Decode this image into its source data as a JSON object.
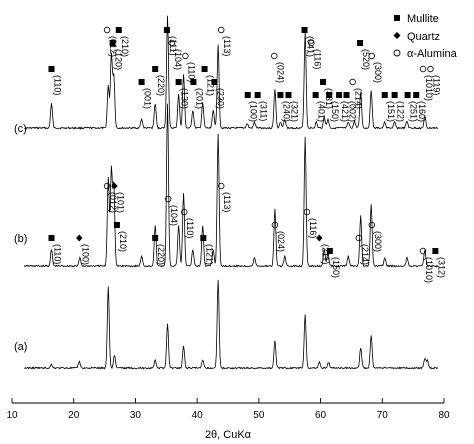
{
  "chart_data": {
    "type": "line",
    "xlabel": "2θ, CuKα",
    "ylabel": "",
    "xlim": [
      10,
      80
    ],
    "x_ticks": [
      "10",
      "20",
      "30",
      "40",
      "50",
      "60",
      "70",
      "80"
    ],
    "grid": false,
    "legend_position": "top-right",
    "legend": [
      {
        "name": "Mullite",
        "marker": "filled-square"
      },
      {
        "name": "Quartz",
        "marker": "filled-diamond"
      },
      {
        "name": "α-Alumina",
        "marker": "open-circle"
      }
    ],
    "panels": [
      {
        "name": "(c)",
        "peaks": [
          {
            "x": 16.4,
            "h": 0.22
          },
          {
            "x": 25.6,
            "h": 0.38
          },
          {
            "x": 26.1,
            "h": 0.66
          },
          {
            "x": 26.5,
            "h": 0.46
          },
          {
            "x": 31.0,
            "h": 0.08
          },
          {
            "x": 33.2,
            "h": 0.22
          },
          {
            "x": 35.2,
            "h": 1.0
          },
          {
            "x": 37.0,
            "h": 0.3
          },
          {
            "x": 37.8,
            "h": 0.48
          },
          {
            "x": 39.3,
            "h": 0.16
          },
          {
            "x": 40.9,
            "h": 0.22
          },
          {
            "x": 42.6,
            "h": 0.16
          },
          {
            "x": 43.4,
            "h": 0.74
          },
          {
            "x": 48.1,
            "h": 0.04
          },
          {
            "x": 49.3,
            "h": 0.05
          },
          {
            "x": 52.6,
            "h": 0.35
          },
          {
            "x": 53.5,
            "h": 0.05
          },
          {
            "x": 54.2,
            "h": 0.08
          },
          {
            "x": 57.5,
            "h": 0.86
          },
          {
            "x": 59.3,
            "h": 0.05
          },
          {
            "x": 60.6,
            "h": 0.1
          },
          {
            "x": 61.2,
            "h": 0.08
          },
          {
            "x": 64.5,
            "h": 0.05
          },
          {
            "x": 65.5,
            "h": 0.06
          },
          {
            "x": 66.5,
            "h": 0.32
          },
          {
            "x": 68.2,
            "h": 0.34
          },
          {
            "x": 70.4,
            "h": 0.05
          },
          {
            "x": 72.0,
            "h": 0.05
          },
          {
            "x": 74.0,
            "h": 0.06
          },
          {
            "x": 76.9,
            "h": 0.1
          }
        ],
        "labels": [
          {
            "x": 16.4,
            "text": "(110)",
            "marker": "mullite",
            "row": 3
          },
          {
            "x": 25.4,
            "text": "(012)",
            "marker": "alumina",
            "row": 0
          },
          {
            "x": 26.3,
            "text": "(120)",
            "marker": "mullite",
            "row": 1
          },
          {
            "x": 27.3,
            "text": "(210)",
            "marker": "mullite",
            "row": 0
          },
          {
            "x": 31.0,
            "text": "(001)",
            "marker": "mullite",
            "row": 4
          },
          {
            "x": 33.2,
            "text": "(220)",
            "marker": "mullite",
            "row": 3
          },
          {
            "x": 35.1,
            "text": "(111)",
            "marker": "mullite",
            "row": 0
          },
          {
            "x": 35.9,
            "text": "(104)",
            "marker": "alumina",
            "row": 1
          },
          {
            "x": 37.0,
            "text": "(130)",
            "marker": "mullite",
            "row": 4
          },
          {
            "x": 38.1,
            "text": "(110)",
            "marker": "alumina",
            "row": 2
          },
          {
            "x": 39.4,
            "text": "(201)",
            "marker": "mullite",
            "row": 4
          },
          {
            "x": 41.2,
            "text": "(121)",
            "marker": "mullite",
            "row": 3
          },
          {
            "x": 42.8,
            "text": "(230)",
            "marker": "mullite",
            "row": 4
          },
          {
            "x": 43.9,
            "text": "(113)",
            "marker": "alumina",
            "row": 0
          },
          {
            "x": 48.2,
            "text": "(100)",
            "marker": "mullite",
            "row": 5
          },
          {
            "x": 49.8,
            "text": "(311)",
            "marker": "mullite",
            "row": 5
          },
          {
            "x": 52.5,
            "text": "(024)",
            "marker": "alumina",
            "row": 2
          },
          {
            "x": 53.5,
            "text": "(240)",
            "marker": "mullite",
            "row": 5
          },
          {
            "x": 54.8,
            "text": "(321)",
            "marker": "mullite",
            "row": 5
          },
          {
            "x": 57.4,
            "text": "(041)",
            "marker": "mullite",
            "row": 0
          },
          {
            "x": 58.5,
            "text": "(116)",
            "marker": "alumina",
            "row": 1
          },
          {
            "x": 59.2,
            "text": "(401)",
            "marker": "mullite",
            "row": 5
          },
          {
            "x": 60.4,
            "text": "(331)",
            "marker": "mullite",
            "row": 4
          },
          {
            "x": 61.4,
            "text": "(150)",
            "marker": "mullite",
            "row": 5
          },
          {
            "x": 63.0,
            "text": "(421)",
            "marker": "mullite",
            "row": 5
          },
          {
            "x": 64.2,
            "text": "(002)",
            "marker": "mullite",
            "row": 5
          },
          {
            "x": 65.2,
            "text": "(214)",
            "marker": "alumina",
            "row": 4
          },
          {
            "x": 66.4,
            "text": "(520)",
            "marker": "mullite",
            "row": 1
          },
          {
            "x": 68.3,
            "text": "(300)",
            "marker": "alumina",
            "row": 2
          },
          {
            "x": 70.4,
            "text": "(151)",
            "marker": "mullite",
            "row": 5
          },
          {
            "x": 72.0,
            "text": "(122)",
            "marker": "mullite",
            "row": 5
          },
          {
            "x": 74.1,
            "text": "(251)",
            "marker": "mullite",
            "row": 5
          },
          {
            "x": 75.5,
            "text": "(160)",
            "marker": "mullite",
            "row": 5
          },
          {
            "x": 76.6,
            "text": "(1010)",
            "marker": "alumina",
            "row": 3
          },
          {
            "x": 77.8,
            "text": "(119)",
            "marker": "alumina",
            "row": 3
          }
        ]
      },
      {
        "name": "(b)",
        "peaks": [
          {
            "x": 16.4,
            "h": 0.1
          },
          {
            "x": 21.0,
            "h": 0.05
          },
          {
            "x": 25.6,
            "h": 0.55
          },
          {
            "x": 26.1,
            "h": 0.6
          },
          {
            "x": 26.5,
            "h": 0.5
          },
          {
            "x": 31.0,
            "h": 0.06
          },
          {
            "x": 33.2,
            "h": 0.25
          },
          {
            "x": 35.2,
            "h": 1.0
          },
          {
            "x": 37.0,
            "h": 0.25
          },
          {
            "x": 37.8,
            "h": 0.45
          },
          {
            "x": 39.3,
            "h": 0.1
          },
          {
            "x": 40.9,
            "h": 0.25
          },
          {
            "x": 42.6,
            "h": 0.1
          },
          {
            "x": 43.4,
            "h": 0.82
          },
          {
            "x": 49.3,
            "h": 0.05
          },
          {
            "x": 52.6,
            "h": 0.35
          },
          {
            "x": 54.2,
            "h": 0.06
          },
          {
            "x": 57.5,
            "h": 0.8
          },
          {
            "x": 60.6,
            "h": 0.1
          },
          {
            "x": 61.2,
            "h": 0.08
          },
          {
            "x": 64.5,
            "h": 0.06
          },
          {
            "x": 66.5,
            "h": 0.31
          },
          {
            "x": 68.2,
            "h": 0.38
          },
          {
            "x": 70.4,
            "h": 0.05
          },
          {
            "x": 74.0,
            "h": 0.05
          },
          {
            "x": 76.9,
            "h": 0.1
          }
        ],
        "labels": []
      },
      {
        "name": "(a)",
        "peaks": [
          {
            "x": 16.4,
            "h": 0.04
          },
          {
            "x": 20.9,
            "h": 0.07
          },
          {
            "x": 25.6,
            "h": 0.88
          },
          {
            "x": 26.6,
            "h": 0.14
          },
          {
            "x": 33.2,
            "h": 0.08
          },
          {
            "x": 35.2,
            "h": 0.48
          },
          {
            "x": 37.8,
            "h": 0.24
          },
          {
            "x": 40.9,
            "h": 0.08
          },
          {
            "x": 43.4,
            "h": 0.96
          },
          {
            "x": 52.6,
            "h": 0.3
          },
          {
            "x": 57.5,
            "h": 0.58
          },
          {
            "x": 59.8,
            "h": 0.06
          },
          {
            "x": 61.3,
            "h": 0.06
          },
          {
            "x": 66.5,
            "h": 0.22
          },
          {
            "x": 68.2,
            "h": 0.36
          },
          {
            "x": 76.9,
            "h": 0.1
          },
          {
            "x": 77.3,
            "h": 0.08
          }
        ],
        "labels": [
          {
            "x": 16.4,
            "text": "(110)",
            "marker": "mullite",
            "row": 4
          },
          {
            "x": 20.9,
            "text": "(100)",
            "marker": "quartz",
            "row": 4
          },
          {
            "x": 25.4,
            "text": "(012)",
            "marker": "alumina",
            "row": 0
          },
          {
            "x": 26.6,
            "text": "(101)",
            "marker": "quartz",
            "row": 0
          },
          {
            "x": 27.0,
            "text": "(210)",
            "marker": "mullite",
            "row": 3
          },
          {
            "x": 33.2,
            "text": "(220)",
            "marker": "mullite",
            "row": 4
          },
          {
            "x": 35.3,
            "text": "(104)",
            "marker": "alumina",
            "row": 1
          },
          {
            "x": 37.9,
            "text": "(110)",
            "marker": "alumina",
            "row": 2
          },
          {
            "x": 41.0,
            "text": "(121)",
            "marker": "mullite",
            "row": 4
          },
          {
            "x": 43.9,
            "text": "(113)",
            "marker": "alumina",
            "row": 0
          },
          {
            "x": 52.6,
            "text": "(024)",
            "marker": "alumina",
            "row": 3
          },
          {
            "x": 57.8,
            "text": "(116)",
            "marker": "alumina",
            "row": 2
          },
          {
            "x": 59.8,
            "text": "(211)",
            "marker": "quartz",
            "row": 4
          },
          {
            "x": 61.5,
            "text": "(150)",
            "marker": "mullite",
            "row": 5
          },
          {
            "x": 66.2,
            "text": "(214)",
            "marker": "alumina",
            "row": 4
          },
          {
            "x": 68.3,
            "text": "(300)",
            "marker": "alumina",
            "row": 3
          },
          {
            "x": 76.6,
            "text": "(1010)",
            "marker": "alumina",
            "row": 5
          },
          {
            "x": 78.6,
            "text": "(312)",
            "marker": "mullite",
            "row": 5
          }
        ]
      }
    ]
  }
}
